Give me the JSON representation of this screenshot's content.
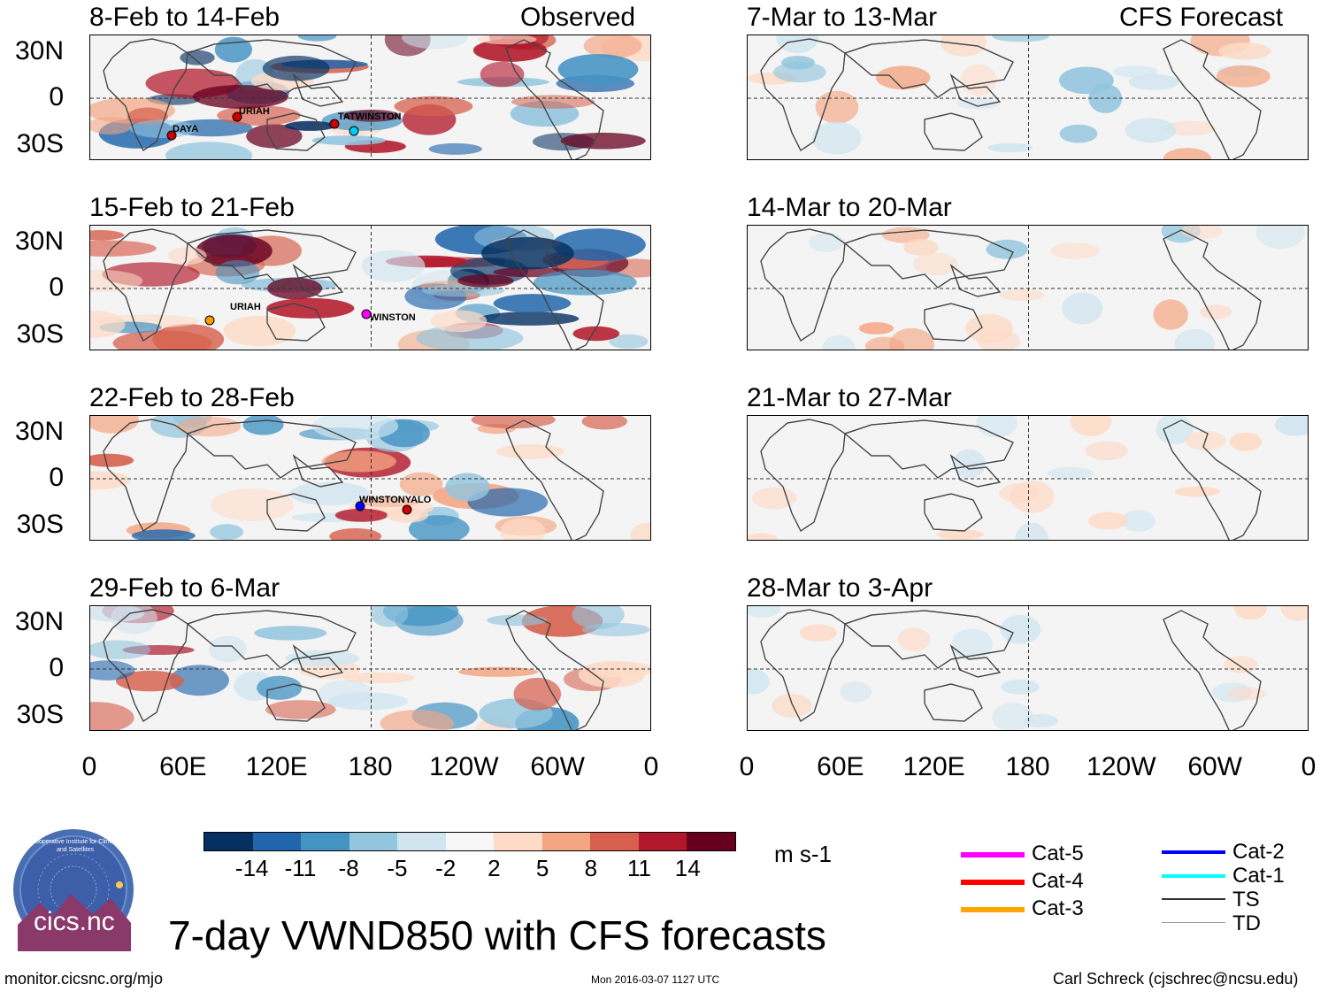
{
  "observed_label": "Observed",
  "forecast_label": "CFS Forecast",
  "observed_panels": [
    {
      "title": "8-Feb to 14-Feb",
      "storms": [
        "DAYA",
        "URIAH",
        "TATWINSTON"
      ]
    },
    {
      "title": "15-Feb to 21-Feb",
      "storms": [
        "URIAH",
        "WINSTON"
      ]
    },
    {
      "title": "22-Feb to 28-Feb",
      "storms": [
        "WINSTONYALO"
      ]
    },
    {
      "title": "29-Feb to 6-Mar",
      "storms": []
    }
  ],
  "forecast_panels": [
    {
      "title": "7-Mar to 13-Mar"
    },
    {
      "title": "14-Mar to 20-Mar"
    },
    {
      "title": "21-Mar to 27-Mar"
    },
    {
      "title": "28-Mar to 3-Apr"
    }
  ],
  "lat_labels": [
    "30N",
    "0",
    "30S"
  ],
  "lon_labels": [
    "0",
    "60E",
    "120E",
    "180",
    "120W",
    "60W",
    "0"
  ],
  "colorbar": {
    "colors": [
      "#053061",
      "#2166ac",
      "#4393c3",
      "#92c5de",
      "#d1e5f0",
      "#f7f7f7",
      "#fddbc7",
      "#f4a582",
      "#d6604d",
      "#b2182b",
      "#67001f"
    ],
    "ticks": [
      "-14",
      "-11",
      "-8",
      "-5",
      "-2",
      "2",
      "5",
      "8",
      "11",
      "14"
    ],
    "units": "m s-1"
  },
  "legend": {
    "col1": [
      {
        "label": "Cat-5",
        "color": "#ff00ff"
      },
      {
        "label": "Cat-4",
        "color": "#ff0000"
      },
      {
        "label": "Cat-3",
        "color": "#ffa500"
      }
    ],
    "col2": [
      {
        "label": "Cat-2",
        "color": "#0000ff"
      },
      {
        "label": "Cat-1",
        "color": "#00ffff"
      },
      {
        "label": "TS",
        "color": "#333333"
      },
      {
        "label": "TD",
        "color": "#999999"
      }
    ]
  },
  "logo_text": "cics.nc",
  "logo_ring_text": "Cooperative Institute for Climate and Satellites",
  "main_title": "7-day VWND850 with CFS forecasts",
  "footer": {
    "left": "monitor.cicsnc.org/mjo",
    "center": "Mon 2016-03-07 1127 UTC",
    "right": "Carl Schreck (cjschrec@ncsu.edu)"
  }
}
